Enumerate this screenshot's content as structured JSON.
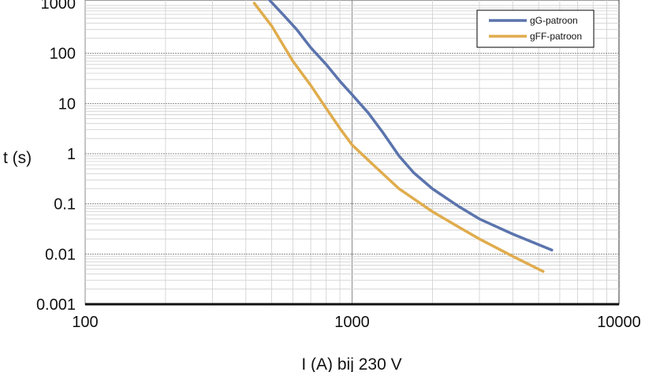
{
  "chart_data": {
    "type": "line",
    "xlabel": "I (A) bij 230 V",
    "ylabel": "t (s)",
    "x_scale": "log",
    "y_scale": "log",
    "xlim": [
      100,
      10000
    ],
    "ylim": [
      0.001,
      1000
    ],
    "grid": true,
    "legend_position": "top-right",
    "x_ticks": [
      "100",
      "1000",
      "10000"
    ],
    "y_ticks": [
      "1000",
      "100",
      "10",
      "1",
      "0.1",
      "0.01",
      "0.001"
    ],
    "series": [
      {
        "name": "gG-patroon",
        "color": "#5b74ad",
        "x": [
          480,
          550,
          620,
          700,
          800,
          900,
          1000,
          1150,
          1300,
          1500,
          1700,
          2000,
          2500,
          3000,
          4000,
          5600
        ],
        "y": [
          1300,
          600,
          300,
          130,
          60,
          28,
          15,
          6.5,
          2.7,
          0.9,
          0.42,
          0.2,
          0.09,
          0.05,
          0.025,
          0.012
        ]
      },
      {
        "name": "gFF-patroon",
        "color": "#e0ac4d",
        "x": [
          430,
          500,
          600,
          700,
          800,
          900,
          1000,
          1200,
          1500,
          2000,
          2500,
          3000,
          4000,
          5200
        ],
        "y": [
          1000,
          350,
          70,
          23,
          8,
          3.2,
          1.5,
          0.6,
          0.2,
          0.07,
          0.035,
          0.02,
          0.009,
          0.0045
        ]
      }
    ]
  }
}
